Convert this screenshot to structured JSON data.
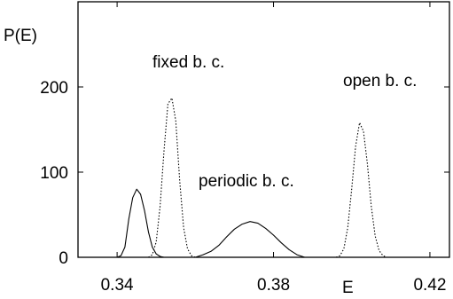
{
  "chart_data": {
    "type": "line",
    "title": "",
    "xlabel": "E",
    "ylabel": "P(E)",
    "xlim": [
      0.33,
      0.425
    ],
    "ylim": [
      0,
      300
    ],
    "grid": false,
    "legend": "none",
    "x_ticks": [
      "0.34",
      "0.38",
      "0.42"
    ],
    "x_tick_values": [
      0.34,
      0.38,
      0.42
    ],
    "y_ticks": [
      "0",
      "100",
      "200"
    ],
    "y_tick_values": [
      0,
      100,
      200
    ],
    "annotations": [
      "fixed b. c.",
      "periodic b. c.",
      "open b. c."
    ],
    "series": [
      {
        "style": "solid",
        "x": [
          0.34,
          0.341,
          0.342,
          0.343,
          0.344,
          0.345,
          0.346,
          0.347,
          0.348,
          0.349,
          0.35,
          0.351,
          0.352
        ],
        "values": [
          0,
          2,
          12,
          45,
          70,
          80,
          74,
          55,
          30,
          12,
          4,
          1,
          0
        ]
      },
      {
        "style": "dotted",
        "x": [
          0.348,
          0.349,
          0.35,
          0.351,
          0.352,
          0.353,
          0.354,
          0.355,
          0.356,
          0.357,
          0.358,
          0.359,
          0.36
        ],
        "values": [
          0,
          3,
          18,
          60,
          125,
          180,
          187,
          160,
          90,
          35,
          10,
          2,
          0
        ]
      },
      {
        "style": "solid",
        "x": [
          0.36,
          0.362,
          0.364,
          0.366,
          0.368,
          0.37,
          0.372,
          0.374,
          0.376,
          0.378,
          0.38,
          0.382,
          0.384,
          0.386,
          0.388
        ],
        "values": [
          0,
          3,
          7,
          14,
          24,
          33,
          39,
          42,
          40,
          34,
          26,
          17,
          9,
          3,
          0
        ]
      },
      {
        "style": "dotted",
        "x": [
          0.396,
          0.397,
          0.398,
          0.399,
          0.4,
          0.401,
          0.402,
          0.403,
          0.404,
          0.405,
          0.406,
          0.407,
          0.408,
          0.409
        ],
        "values": [
          0,
          2,
          10,
          35,
          80,
          130,
          158,
          148,
          110,
          60,
          25,
          8,
          2,
          0
        ]
      }
    ]
  }
}
